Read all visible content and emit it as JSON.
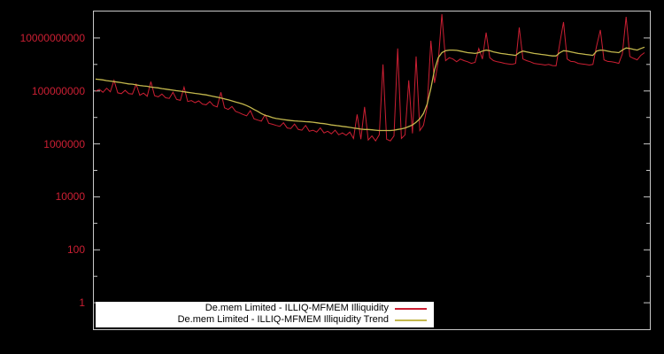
{
  "figure": {
    "background_color": "#000000",
    "plot_border_color": "#c8c8c8"
  },
  "legend": {
    "background": "#ffffff",
    "text_color": "#000000",
    "position": "bottom-inside-left"
  },
  "chart_data": {
    "type": "line",
    "title": "",
    "xlabel": "",
    "ylabel": "",
    "y_scale": "log",
    "ylim": [
      0.1,
      100000000000.0
    ],
    "grid": false,
    "x_tick_labels": [],
    "y_tick_values": [
      1,
      100,
      10000,
      1000000,
      100000000,
      10000000000
    ],
    "y_tick_labels": [
      "1",
      "100",
      "10000",
      "1000000",
      "100000000",
      "10000000000"
    ],
    "series": [
      {
        "name": "De.mem Limited - ILLIQ-MFMEM Illiquidity",
        "color": "#cc1f33",
        "values": [
          100000000.0,
          115000000.0,
          89000000.0,
          126000000.0,
          93000000.0,
          250000000.0,
          85000000.0,
          79000000.0,
          105000000.0,
          79000000.0,
          76000000.0,
          180000000.0,
          69000000.0,
          83000000.0,
          63000000.0,
          224000000.0,
          66000000.0,
          60000000.0,
          76000000.0,
          55000000.0,
          52000000.0,
          89000000.0,
          48000000.0,
          44000000.0,
          140000000.0,
          40000000.0,
          43000000.0,
          36000000.0,
          42000000.0,
          32000000.0,
          30000000.0,
          40000000.0,
          28000000.0,
          25000000.0,
          89000000.0,
          23000000.0,
          20000000.0,
          26000000.0,
          17000000.0,
          15000000.0,
          13000000.0,
          11500000.0,
          18000000.0,
          8900000.0,
          7900000.0,
          7200000.0,
          12600000.0,
          6000000.0,
          5500000.0,
          5000000.0,
          4600000.0,
          6300000.0,
          4000000.0,
          3800000.0,
          5600000.0,
          3500000.0,
          3300000.0,
          5000000.0,
          3000000.0,
          3300000.0,
          2800000.0,
          4000000.0,
          2600000.0,
          3000000.0,
          2400000.0,
          3300000.0,
          2200000.0,
          2600000.0,
          2100000.0,
          2800000.0,
          1600000.0,
          13000000.0,
          1500000.0,
          25000000.0,
          1400000.0,
          2000000.0,
          1300000.0,
          2200000.0,
          1000000000.0,
          1500000.0,
          1300000.0,
          2000000.0,
          4000000000.0,
          1600000.0,
          2200000.0,
          250000000.0,
          2500000.0,
          2000000000.0,
          3200000.0,
          5000000.0,
          25000000.0,
          7900000000.0,
          200000000.0,
          1260000000.0,
          79000000000.0,
          1400000000.0,
          1800000000.0,
          1600000000.0,
          1260000000.0,
          1600000000.0,
          1400000000.0,
          1260000000.0,
          1100000000.0,
          1200000000.0,
          4000000000.0,
          1600000000.0,
          16000000000.0,
          1800000000.0,
          1400000000.0,
          1260000000.0,
          1200000000.0,
          1100000000.0,
          1050000000.0,
          1000000000.0,
          1100000000.0,
          25000000000.0,
          1600000000.0,
          1400000000.0,
          1260000000.0,
          1100000000.0,
          1050000000.0,
          1000000000.0,
          950000000.0,
          1000000000.0,
          910000000.0,
          890000000.0,
          6300000000.0,
          40000000000.0,
          1600000000.0,
          1300000000.0,
          1260000000.0,
          1100000000.0,
          1050000000.0,
          1000000000.0,
          950000000.0,
          1000000000.0,
          5000000000.0,
          20000000000.0,
          1500000000.0,
          1300000000.0,
          1260000000.0,
          1200000000.0,
          1100000000.0,
          2500000000.0,
          63000000000.0,
          2000000000.0,
          1700000000.0,
          1500000000.0,
          2200000000.0,
          2800000000.0
        ]
      },
      {
        "name": "De.mem Limited - ILLIQ-MFMEM Illiquidity Trend",
        "color": "#c4b84d",
        "values": [
          280000000.0,
          270000000.0,
          260000000.0,
          245000000.0,
          235000000.0,
          225000000.0,
          215000000.0,
          205000000.0,
          195000000.0,
          185000000.0,
          180000000.0,
          170000000.0,
          160000000.0,
          155000000.0,
          150000000.0,
          140000000.0,
          135000000.0,
          130000000.0,
          123000000.0,
          117000000.0,
          112000000.0,
          107000000.0,
          102000000.0,
          98000000.0,
          93000000.0,
          89000000.0,
          85000000.0,
          81000000.0,
          78000000.0,
          74000000.0,
          71000000.0,
          66000000.0,
          62000000.0,
          58000000.0,
          54000000.0,
          50000000.0,
          46000000.0,
          42000000.0,
          38000000.0,
          35000000.0,
          32000000.0,
          28000000.0,
          24000000.0,
          20000000.0,
          17000000.0,
          14000000.0,
          12000000.0,
          11000000.0,
          9800000.0,
          9100000.0,
          8700000.0,
          8300000.0,
          7900000.0,
          7600000.0,
          7400000.0,
          7200000.0,
          7100000.0,
          6900000.0,
          6800000.0,
          6600000.0,
          6300000.0,
          6000000.0,
          5800000.0,
          5500000.0,
          5200000.0,
          5000000.0,
          4800000.0,
          4600000.0,
          4400000.0,
          4200000.0,
          4000000.0,
          3800000.0,
          3600000.0,
          3500000.0,
          3500000.0,
          3400000.0,
          3300000.0,
          3200000.0,
          3200000.0,
          3200000.0,
          3200000.0,
          3300000.0,
          3500000.0,
          3700000.0,
          4000000.0,
          4500000.0,
          5200000.0,
          6600000.0,
          8900000.0,
          14000000.0,
          32000000.0,
          126000000.0,
          630000000.0,
          1800000000.0,
          2800000000.0,
          3300000000.0,
          3500000000.0,
          3500000000.0,
          3400000000.0,
          3200000000.0,
          3000000000.0,
          2800000000.0,
          2700000000.0,
          2600000000.0,
          2800000000.0,
          3200000000.0,
          3500000000.0,
          3300000000.0,
          3000000000.0,
          2800000000.0,
          2600000000.0,
          2500000000.0,
          2400000000.0,
          2300000000.0,
          2200000000.0,
          2800000000.0,
          3200000000.0,
          3000000000.0,
          2800000000.0,
          2600000000.0,
          2500000000.0,
          2400000000.0,
          2300000000.0,
          2200000000.0,
          2100000000.0,
          2100000000.0,
          2800000000.0,
          3300000000.0,
          3200000000.0,
          3000000000.0,
          2800000000.0,
          2600000000.0,
          2500000000.0,
          2400000000.0,
          2300000000.0,
          2200000000.0,
          3200000000.0,
          3500000000.0,
          3400000000.0,
          3200000000.0,
          3000000000.0,
          2900000000.0,
          2800000000.0,
          3500000000.0,
          4200000000.0,
          4000000000.0,
          3700000000.0,
          3500000000.0,
          4000000000.0,
          4500000000.0
        ]
      }
    ]
  }
}
